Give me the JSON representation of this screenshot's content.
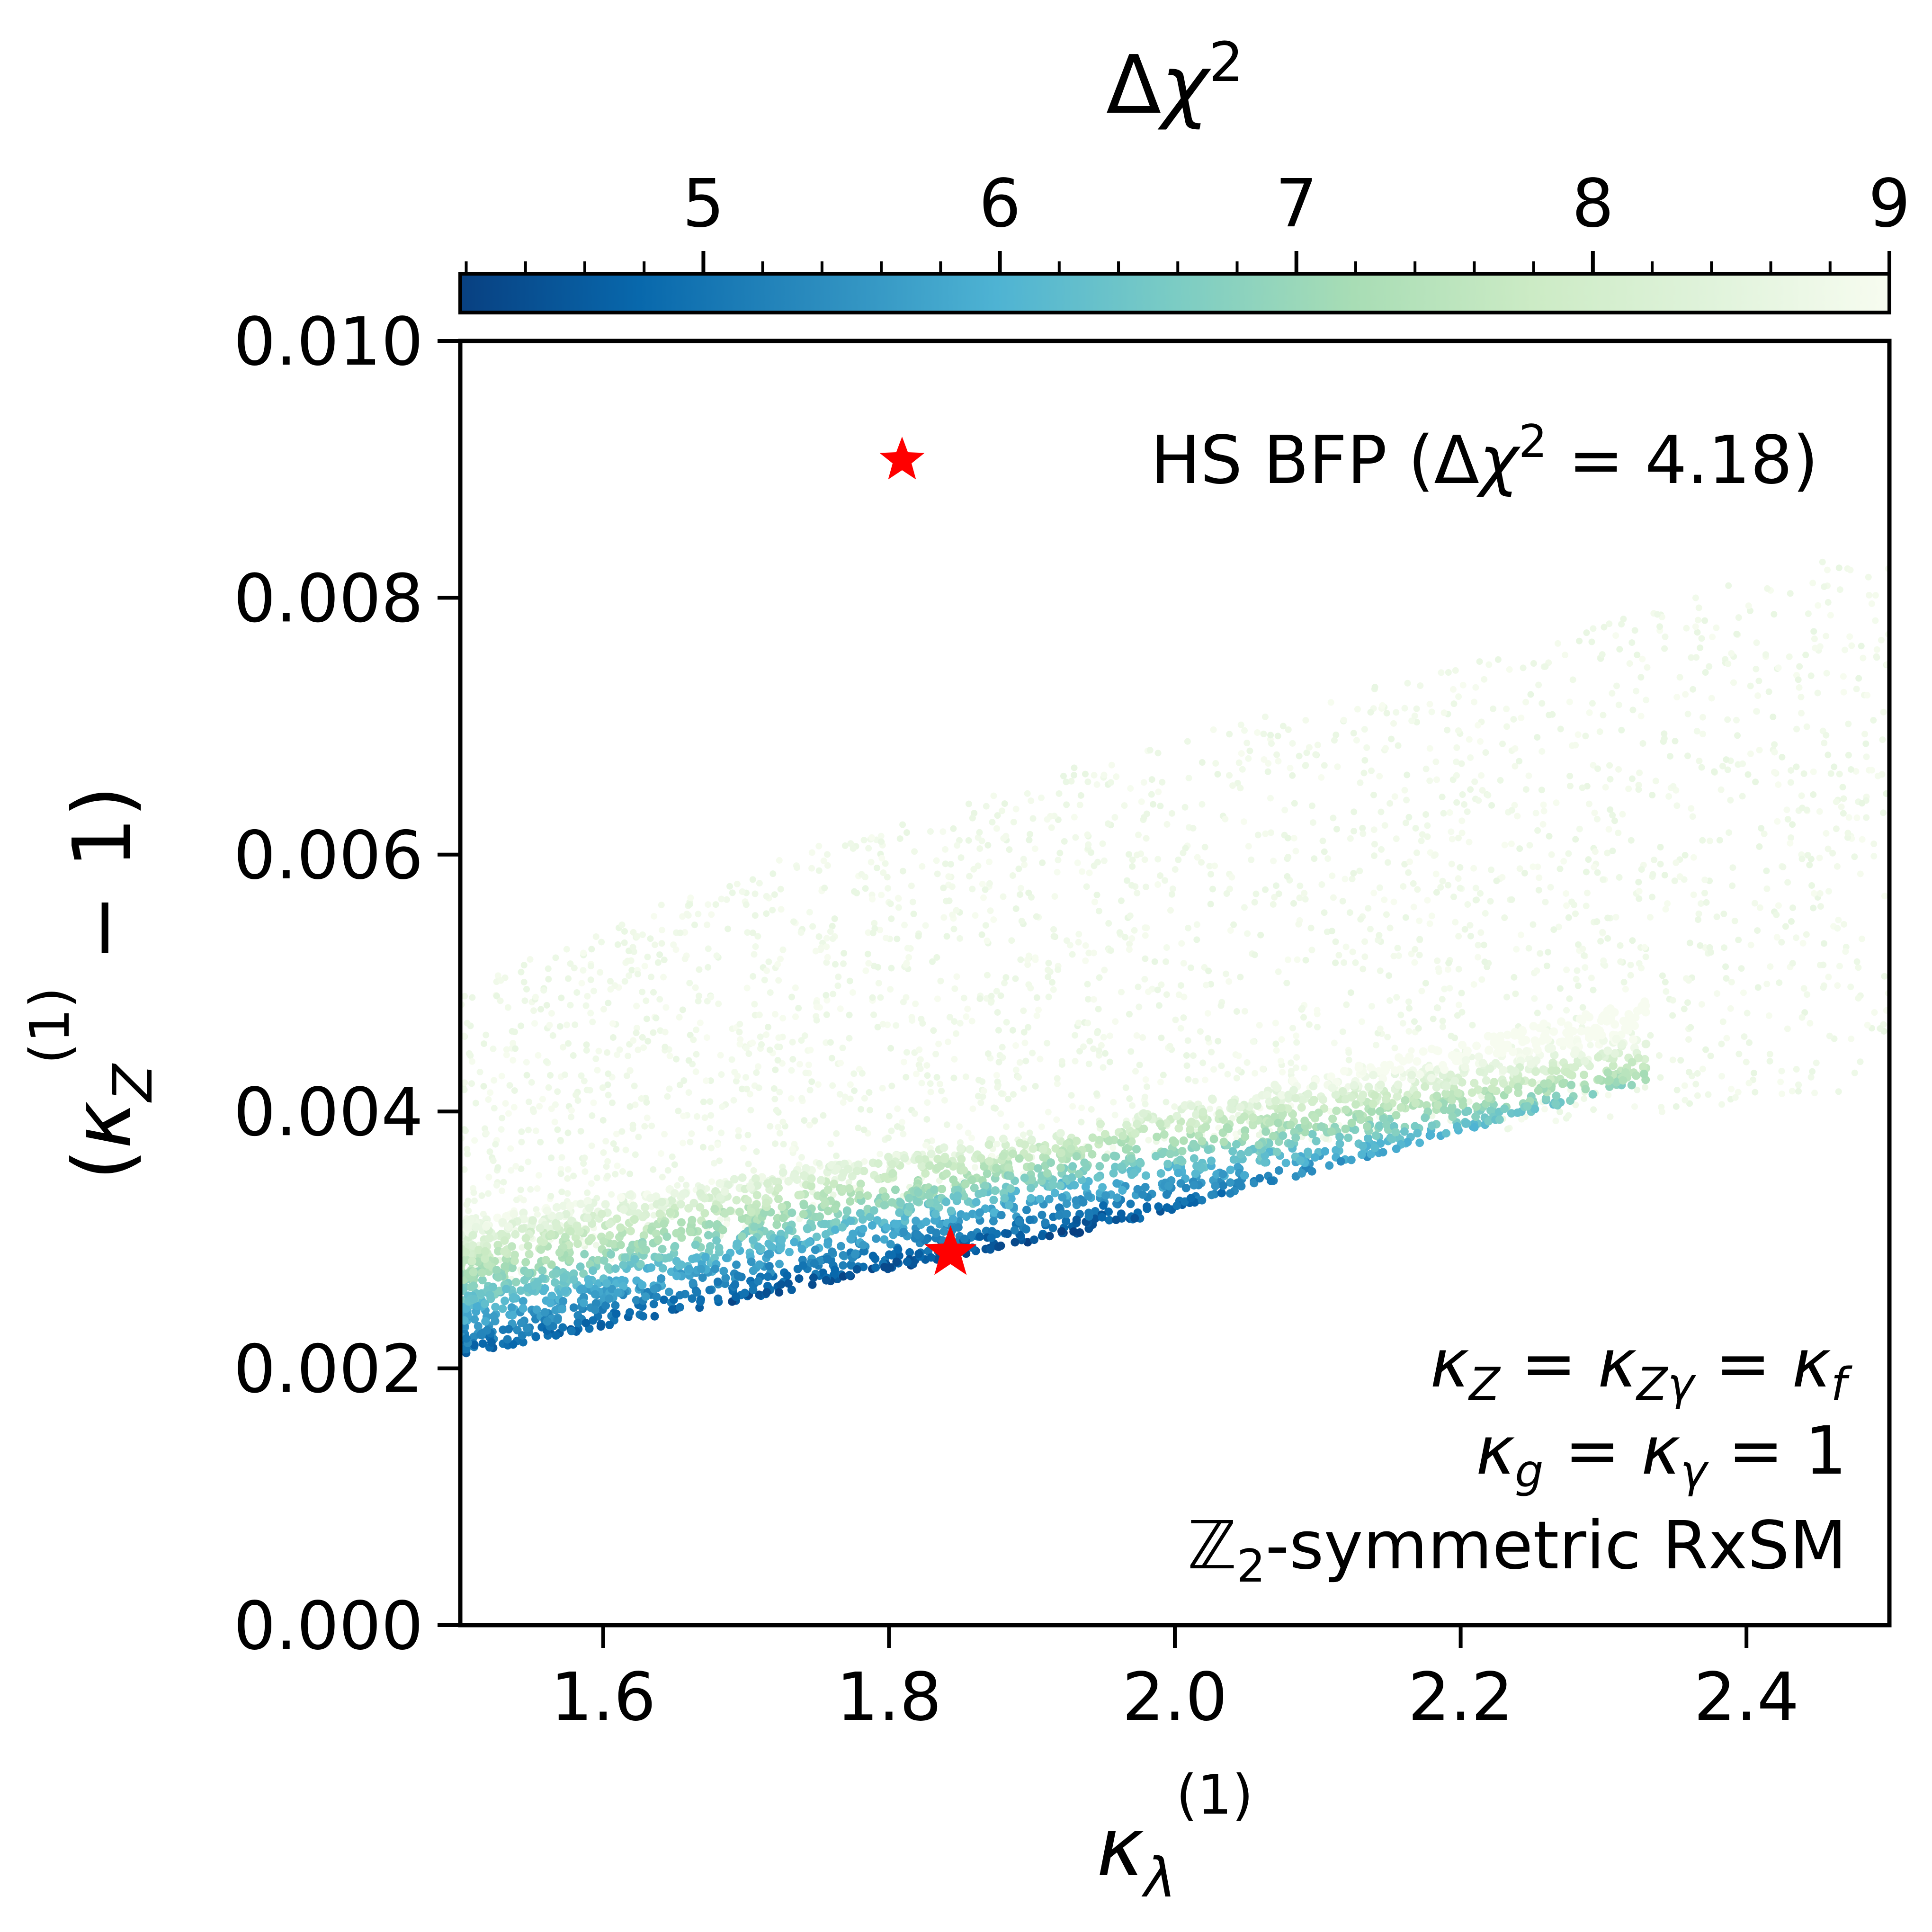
{
  "chart_data": {
    "type": "scatter",
    "xlabel": "κλ(1)",
    "ylabel": "(κZ(1) − 1)",
    "xlim": [
      1.5,
      2.5
    ],
    "ylim": [
      0.0,
      0.01
    ],
    "x_ticks": [
      "1.6",
      "1.8",
      "2.0",
      "2.2",
      "2.4"
    ],
    "y_ticks": [
      "0.000",
      "0.002",
      "0.004",
      "0.006",
      "0.008",
      "0.010"
    ],
    "colorbar": {
      "label": "Δχ2",
      "range": [
        4.18,
        9
      ],
      "ticks": [
        "5",
        "6",
        "7",
        "8",
        "9"
      ],
      "colormap": "GnBu_r",
      "colors": [
        "#084081",
        "#0868ac",
        "#2b8cbe",
        "#4eb3d3",
        "#7bccc4",
        "#a8ddb5",
        "#ccebc5",
        "#e0f3db",
        "#f7fcf0"
      ]
    },
    "legend": {
      "placement": "upper-right",
      "label": "HS BFP (Δχ2 = 4.18)",
      "marker_color": "#ff0000"
    },
    "best_fit_point": {
      "x": 1.843,
      "y": 0.0029,
      "delta_chi2": 4.18
    },
    "annotations": [
      "κZ = κZγ = κf",
      "κg = κγ = 1",
      "ℤ2-symmetric RxSM"
    ],
    "annotation_placement": "lower-right",
    "regions": [
      {
        "description": "Δχ² ≈ 9 band",
        "lower_edge": [
          [
            1.5,
            0.0026
          ],
          [
            1.8,
            0.0033
          ],
          [
            2.0,
            0.0037
          ],
          [
            2.3,
            0.0039
          ],
          [
            2.5,
            0.0042
          ]
        ],
        "upper_edge": [
          [
            1.5,
            0.005
          ],
          [
            1.7,
            0.0059
          ],
          [
            1.9,
            0.0066
          ],
          [
            2.1,
            0.0072
          ],
          [
            2.3,
            0.0078
          ],
          [
            2.5,
            0.0085
          ]
        ]
      },
      {
        "description": "low Δχ² band",
        "lower_edge": [
          [
            1.5,
            0.0021
          ],
          [
            1.7,
            0.0025
          ],
          [
            1.9,
            0.003
          ],
          [
            2.1,
            0.0035
          ],
          [
            2.3,
            0.0039
          ]
        ],
        "upper_edge": [
          [
            1.5,
            0.0031
          ],
          [
            1.7,
            0.0036
          ],
          [
            1.9,
            0.004
          ],
          [
            2.1,
            0.0043
          ],
          [
            2.33,
            0.0039
          ]
        ]
      }
    ]
  }
}
